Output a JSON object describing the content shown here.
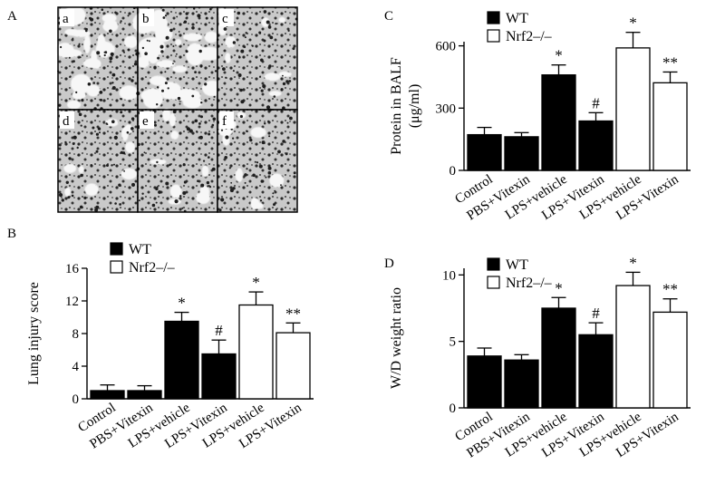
{
  "figure": {
    "panel_labels": [
      "A",
      "B",
      "C",
      "D"
    ],
    "micro_labels": [
      "a",
      "b",
      "c",
      "d",
      "e",
      "f"
    ]
  },
  "colors": {
    "wt": "#000000",
    "ko": "#ffffff",
    "stroke": "#000000"
  },
  "chart_data": [
    {
      "id": "B",
      "type": "bar",
      "title": "",
      "xlabel": "",
      "ylabel": "Lung injury score",
      "ylim": [
        0,
        16
      ],
      "yticks": [
        0,
        4,
        8,
        12,
        16
      ],
      "categories": [
        "Control",
        "PBS+Vitexin",
        "LPS+vehicle",
        "LPS+Vitexin",
        "LPS+vehicle",
        "LPS+Vitexin"
      ],
      "values": [
        1.0,
        1.0,
        9.5,
        5.5,
        11.5,
        8.1
      ],
      "errors": [
        0.7,
        0.6,
        1.1,
        1.7,
        1.6,
        1.2
      ],
      "groups": [
        "WT",
        "WT",
        "WT",
        "WT",
        "Nrf2–/–",
        "Nrf2–/–"
      ],
      "annotations": [
        "",
        "",
        "*",
        "#",
        "*",
        "**"
      ],
      "legend": [
        "WT",
        "Nrf2–/–"
      ],
      "legend_position": "top-left",
      "grid": false
    },
    {
      "id": "C",
      "type": "bar",
      "title": "",
      "xlabel": "",
      "ylabel": "Protein in BALF\n(μg/ml)",
      "ylim": [
        0,
        620
      ],
      "yticks": [
        0,
        300,
        600
      ],
      "categories": [
        "Control",
        "PBS+Vitexin",
        "LPS+vehicle",
        "LPS+Vitexin",
        "LPS+vehicle",
        "LPS+Vitexin"
      ],
      "values": [
        172,
        162,
        460,
        238,
        590,
        422
      ],
      "errors": [
        35,
        20,
        48,
        40,
        75,
        52
      ],
      "groups": [
        "WT",
        "WT",
        "WT",
        "WT",
        "Nrf2–/–",
        "Nrf2–/–"
      ],
      "annotations": [
        "",
        "",
        "*",
        "#",
        "*",
        "**"
      ],
      "legend": [
        "WT",
        "Nrf2–/–"
      ],
      "legend_position": "top-left",
      "grid": false
    },
    {
      "id": "D",
      "type": "bar",
      "title": "",
      "xlabel": "",
      "ylabel": "W/D weight ratio",
      "ylim": [
        0,
        10.5
      ],
      "yticks": [
        0,
        5,
        10
      ],
      "categories": [
        "Control",
        "PBS+Vitexin",
        "LPS+vehicle",
        "LPS+Vitexin",
        "LPS+vehicle",
        "LPS+Vitexin"
      ],
      "values": [
        3.9,
        3.6,
        7.5,
        5.5,
        9.2,
        7.2
      ],
      "errors": [
        0.6,
        0.4,
        0.8,
        0.9,
        1.0,
        1.0
      ],
      "groups": [
        "WT",
        "WT",
        "WT",
        "WT",
        "Nrf2–/–",
        "Nrf2–/–"
      ],
      "annotations": [
        "",
        "",
        "*",
        "#",
        "*",
        "**"
      ],
      "legend": [
        "WT",
        "Nrf2–/–"
      ],
      "legend_position": "top-left",
      "grid": false
    }
  ]
}
